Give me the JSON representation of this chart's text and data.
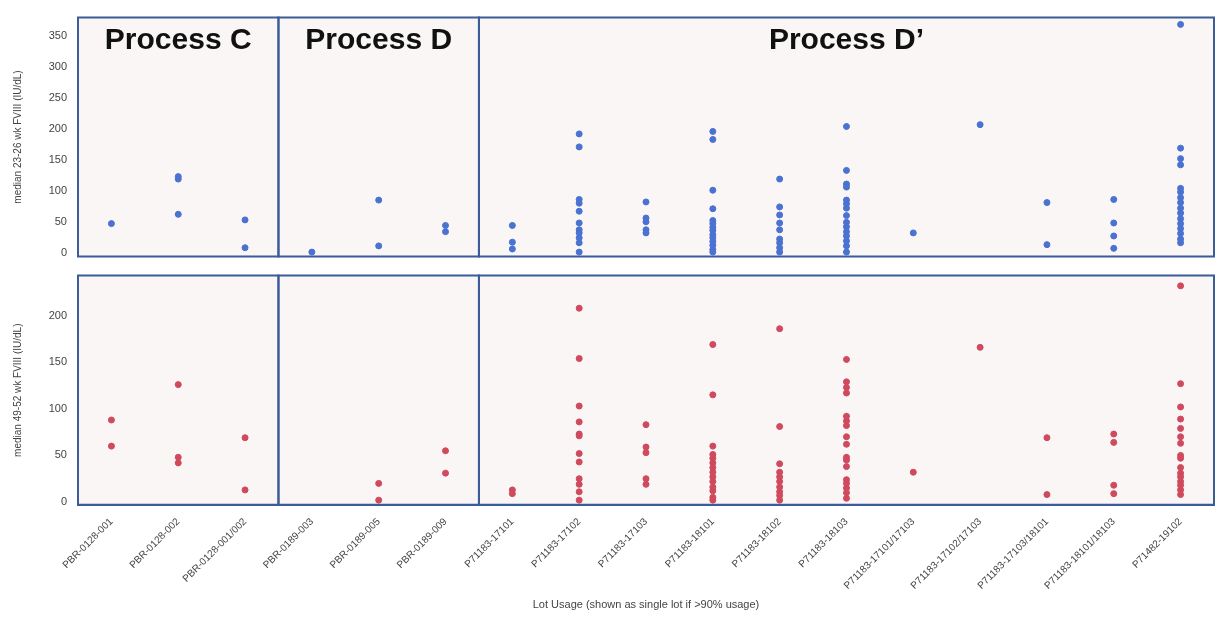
{
  "chart_data": [
    {
      "type": "scatter",
      "ylabel": "median 23-26 wk FVIII (IU/dL)",
      "categories": [
        "PBR-0128-001",
        "PBR-0128-002",
        "PBR-0128-001/002",
        "PBR-0189-003",
        "PBR-0189-005",
        "PBR-0189-009",
        "P71183-17101",
        "P71183-17102",
        "P71183-17103",
        "P71183-18101",
        "P71183-18102",
        "P71183-18103",
        "P71183-17101/17103",
        "P71183-17102/17103",
        "P71183-17103/18101",
        "P71183-18101/18103",
        "P71482-19102"
      ],
      "series": [
        {
          "type": "scatter",
          "color": "#4a72d0",
          "x": [
            "PBR-0128-001",
            "PBR-0128-002",
            "PBR-0128-002",
            "PBR-0128-002",
            "PBR-0128-001/002",
            "PBR-0128-001/002",
            "PBR-0189-003",
            "PBR-0189-005",
            "PBR-0189-005",
            "PBR-0189-009",
            "PBR-0189-009",
            "P71183-17101",
            "P71183-17101",
            "P71183-17101",
            "P71183-17102",
            "P71183-17102",
            "P71183-17102",
            "P71183-17102",
            "P71183-17102",
            "P71183-17102",
            "P71183-17102",
            "P71183-17102",
            "P71183-17102",
            "P71183-17102",
            "P71183-17102",
            "P71183-17103",
            "P71183-17103",
            "P71183-17103",
            "P71183-17103",
            "P71183-17103",
            "P71183-18101",
            "P71183-18101",
            "P71183-18101",
            "P71183-18101",
            "P71183-18101",
            "P71183-18101",
            "P71183-18101",
            "P71183-18101",
            "P71183-18101",
            "P71183-18101",
            "P71183-18101",
            "P71183-18101",
            "P71183-18101",
            "P71183-18101",
            "P71183-18102",
            "P71183-18102",
            "P71183-18102",
            "P71183-18102",
            "P71183-18102",
            "P71183-18102",
            "P71183-18102",
            "P71183-18102",
            "P71183-18102",
            "P71183-18103",
            "P71183-18103",
            "P71183-18103",
            "P71183-18103",
            "P71183-18103",
            "P71183-18103",
            "P71183-18103",
            "P71183-18103",
            "P71183-18103",
            "P71183-18103",
            "P71183-18103",
            "P71183-18103",
            "P71183-18103",
            "P71183-18103",
            "P71183-18103",
            "P71183-17101/17103",
            "P71183-17102/17103",
            "P71183-17103/18101",
            "P71183-17103/18101",
            "P71183-18101/18103",
            "P71183-18101/18103",
            "P71183-18101/18103",
            "P71183-18101/18103",
            "P71482-19102",
            "P71482-19102",
            "P71482-19102",
            "P71482-19102",
            "P71482-19102",
            "P71482-19102",
            "P71482-19102",
            "P71482-19102",
            "P71482-19102",
            "P71482-19102",
            "P71482-19102",
            "P71482-19102",
            "P71482-19102",
            "P71482-19102",
            "P71482-19102",
            "P71482-19102"
          ],
          "values": [
            47,
            123,
            119,
            62,
            53,
            8,
            1,
            85,
            11,
            44,
            34,
            44,
            17,
            6,
            192,
            171,
            86,
            80,
            67,
            48,
            37,
            32,
            24,
            16,
            1,
            82,
            56,
            50,
            37,
            32,
            196,
            183,
            101,
            71,
            52,
            47,
            41,
            36,
            29,
            24,
            18,
            12,
            5,
            1,
            119,
            74,
            61,
            48,
            37,
            22,
            16,
            8,
            1,
            204,
            133,
            111,
            106,
            85,
            79,
            72,
            60,
            49,
            42,
            34,
            27,
            19,
            11,
            1,
            32,
            207,
            81,
            13,
            86,
            48,
            27,
            7,
            369,
            169,
            152,
            142,
            104,
            98,
            89,
            81,
            72,
            64,
            55,
            47,
            39,
            31,
            22,
            16
          ]
        }
      ],
      "ylim": [
        -6,
        380
      ],
      "yticks": [
        0,
        50,
        100,
        150,
        200,
        250,
        300,
        350
      ],
      "tick_labels": "y",
      "grid": false,
      "marker": "circle",
      "bands": [
        {
          "axis": "x",
          "from": "PBR-0128-001",
          "to": "PBR-0128-001/002",
          "label": "Process C",
          "color": "#fbf6f6"
        },
        {
          "axis": "x",
          "from": "PBR-0189-003",
          "to": "PBR-0189-009",
          "label": "Process D",
          "color": "#fbf6f6"
        },
        {
          "axis": "x",
          "from": "P71183-17101",
          "to": "P71482-19102",
          "label": "Process D’",
          "color": "#fbf6f6"
        }
      ]
    },
    {
      "type": "scatter",
      "ylabel": "median 49-52 wk FVIII (IU/dL)",
      "xlabel": "Lot Usage (shown as single lot if >90% usage)",
      "categories": [
        "PBR-0128-001",
        "PBR-0128-002",
        "PBR-0128-001/002",
        "PBR-0189-003",
        "PBR-0189-005",
        "PBR-0189-009",
        "P71183-17101",
        "P71183-17102",
        "P71183-17103",
        "P71183-18101",
        "P71183-18102",
        "P71183-18103",
        "P71183-17101/17103",
        "P71183-17102/17103",
        "P71183-17103/18101",
        "P71183-18101/18103",
        "P71482-19102"
      ],
      "series": [
        {
          "type": "scatter",
          "color": "#d04a5e",
          "x": [
            "PBR-0128-001",
            "PBR-0128-001",
            "PBR-0128-002",
            "PBR-0128-002",
            "PBR-0128-002",
            "PBR-0128-001/002",
            "PBR-0128-001/002",
            "PBR-0189-005",
            "PBR-0189-005",
            "PBR-0189-009",
            "PBR-0189-009",
            "P71183-17101",
            "P71183-17101",
            "P71183-17102",
            "P71183-17102",
            "P71183-17102",
            "P71183-17102",
            "P71183-17102",
            "P71183-17102",
            "P71183-17102",
            "P71183-17102",
            "P71183-17102",
            "P71183-17102",
            "P71183-17102",
            "P71183-17102",
            "P71183-17103",
            "P71183-17103",
            "P71183-17103",
            "P71183-17103",
            "P71183-17103",
            "P71183-18101",
            "P71183-18101",
            "P71183-18101",
            "P71183-18101",
            "P71183-18101",
            "P71183-18101",
            "P71183-18101",
            "P71183-18101",
            "P71183-18101",
            "P71183-18101",
            "P71183-18101",
            "P71183-18101",
            "P71183-18101",
            "P71183-18101",
            "P71183-18102",
            "P71183-18102",
            "P71183-18102",
            "P71183-18102",
            "P71183-18102",
            "P71183-18102",
            "P71183-18102",
            "P71183-18102",
            "P71183-18102",
            "P71183-18102",
            "P71183-18103",
            "P71183-18103",
            "P71183-18103",
            "P71183-18103",
            "P71183-18103",
            "P71183-18103",
            "P71183-18103",
            "P71183-18103",
            "P71183-18103",
            "P71183-18103",
            "P71183-18103",
            "P71183-18103",
            "P71183-18103",
            "P71183-18103",
            "P71183-18103",
            "P71183-18103",
            "P71183-18103",
            "P71183-17101/17103",
            "P71183-17102/17103",
            "P71183-17103/18101",
            "P71183-17103/18101",
            "P71183-18101/18103",
            "P71183-18101/18103",
            "P71183-18101/18103",
            "P71183-18101/18103",
            "P71482-19102",
            "P71482-19102",
            "P71482-19102",
            "P71482-19102",
            "P71482-19102",
            "P71482-19102",
            "P71482-19102",
            "P71482-19102",
            "P71482-19102",
            "P71482-19102",
            "P71482-19102",
            "P71482-19102",
            "P71482-19102",
            "P71482-19102",
            "P71482-19102",
            "P71482-19102"
          ],
          "values": [
            88,
            60,
            126,
            48,
            42,
            69,
            13,
            20,
            2,
            55,
            31,
            13,
            9,
            208,
            154,
            103,
            86,
            73,
            71,
            52,
            43,
            25,
            19,
            11,
            2,
            83,
            59,
            53,
            25,
            19,
            169,
            115,
            60,
            51,
            47,
            42,
            37,
            32,
            27,
            22,
            16,
            12,
            5,
            2,
            186,
            81,
            41,
            32,
            27,
            22,
            16,
            11,
            7,
            2,
            153,
            129,
            123,
            117,
            92,
            87,
            82,
            70,
            62,
            48,
            45,
            38,
            24,
            20,
            15,
            10,
            4,
            32,
            166,
            69,
            8,
            73,
            64,
            18,
            9,
            232,
            127,
            102,
            89,
            79,
            70,
            63,
            50,
            47,
            37,
            31,
            27,
            22,
            18,
            13,
            8
          ]
        }
      ],
      "ylim": [
        -3,
        243
      ],
      "yticks": [
        0,
        50,
        100,
        150,
        200
      ],
      "grid": false,
      "marker": "circle",
      "bands": [
        {
          "axis": "x",
          "from": "PBR-0128-001",
          "to": "PBR-0128-001/002",
          "color": "#fbf6f6"
        },
        {
          "axis": "x",
          "from": "PBR-0189-003",
          "to": "PBR-0189-009",
          "color": "#fbf6f6"
        },
        {
          "axis": "x",
          "from": "P71183-17101",
          "to": "P71482-19102",
          "color": "#fbf6f6"
        }
      ]
    }
  ]
}
